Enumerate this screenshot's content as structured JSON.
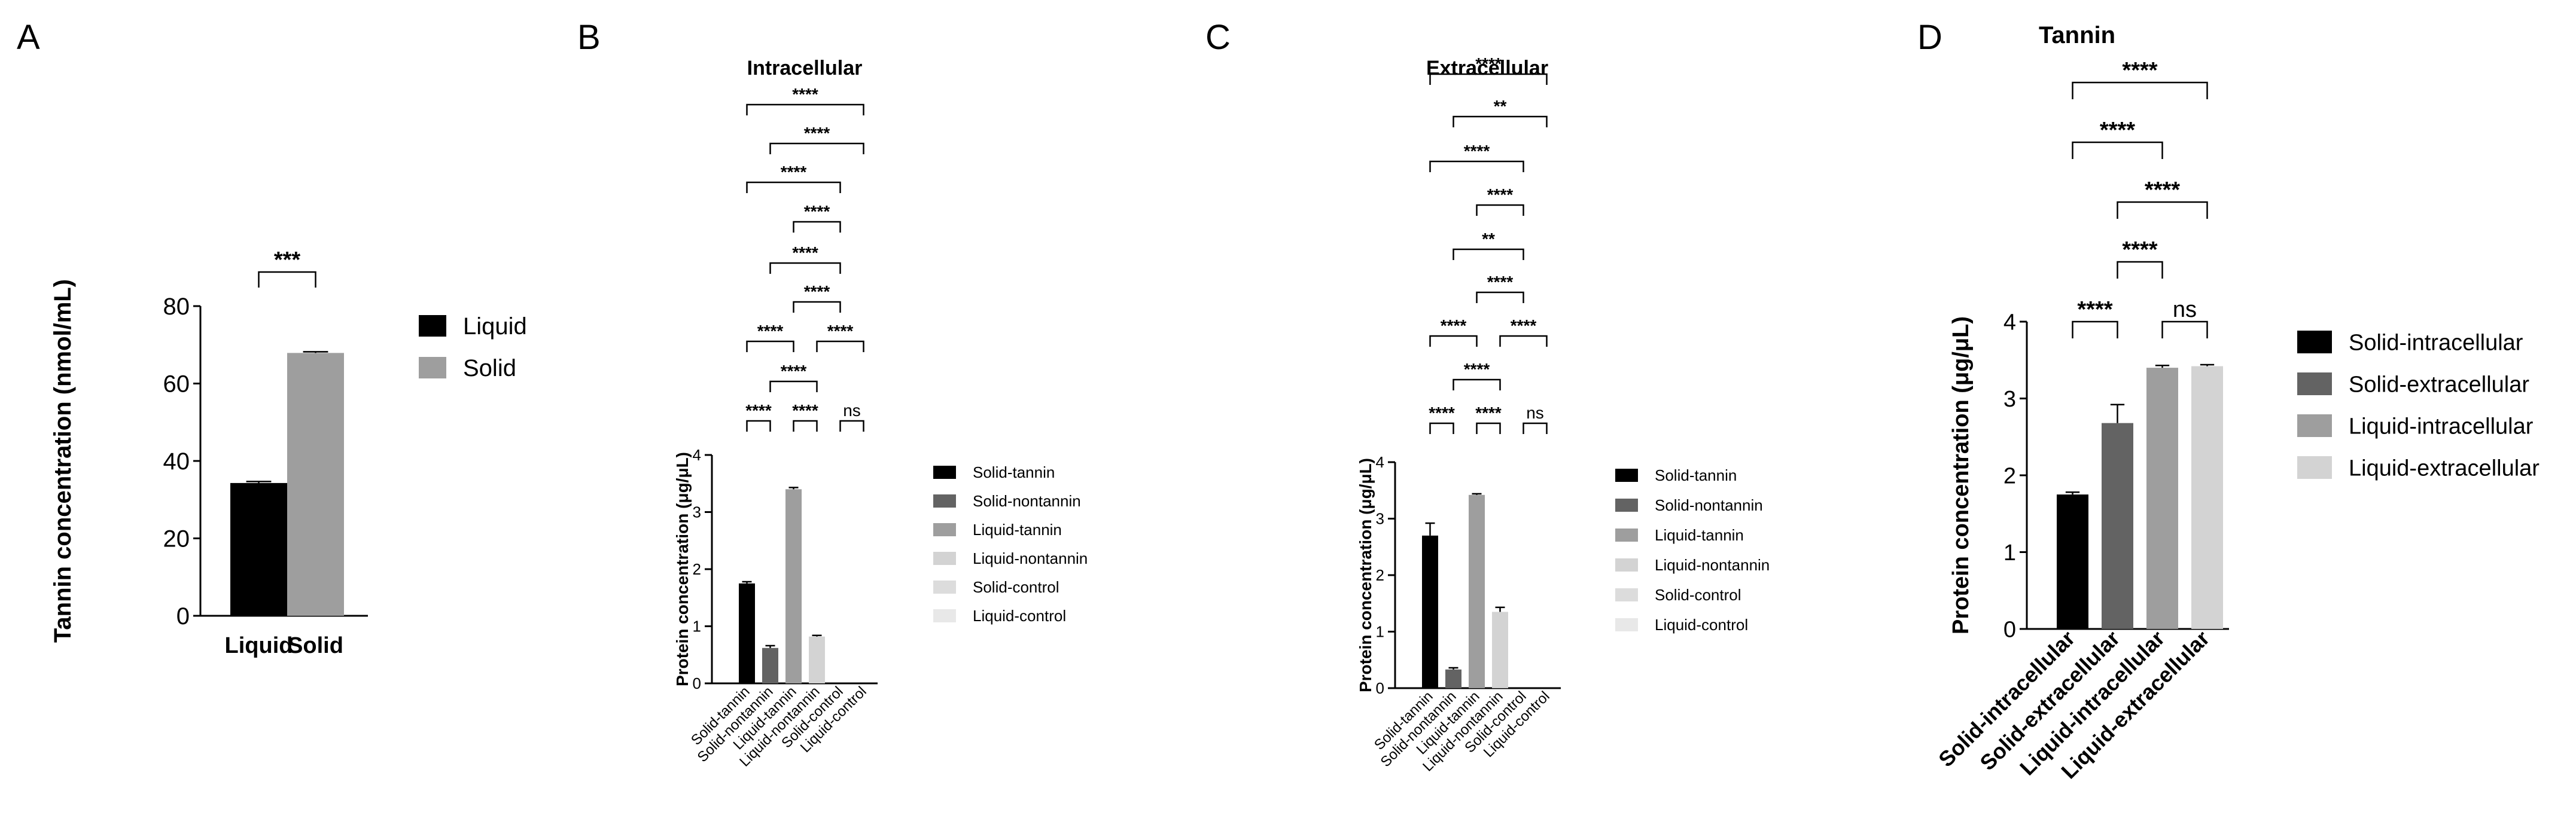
{
  "figure": {
    "panel_labels": [
      "A",
      "B",
      "C",
      "D"
    ]
  },
  "chart_data": [
    {
      "type": "bar",
      "panel": "A",
      "title": "",
      "xlabel": "",
      "ylabel": "Tannin concentration (nmol/mL)",
      "categories": [
        "Liquid",
        "Solid"
      ],
      "values": [
        34.3,
        67.9
      ],
      "errors": [
        0.4,
        0.3
      ],
      "colors": [
        "#000000",
        "#9e9e9e"
      ],
      "ylim": [
        0,
        80
      ],
      "yticks": [
        0,
        20,
        40,
        60,
        80
      ],
      "legend": [
        "Liquid",
        "Solid"
      ],
      "legend_position": "right",
      "significance": [
        {
          "from": 0,
          "to": 1,
          "label": "***"
        }
      ]
    },
    {
      "type": "bar",
      "panel": "B",
      "title": "Intracellular",
      "xlabel": "",
      "ylabel": "Protein concentration (μg/μL)",
      "categories": [
        "Solid-tannin",
        "Solid-nontannin",
        "Liquid-tannin",
        "Liquid-nontannin",
        "Solid-control",
        "Liquid-control"
      ],
      "values": [
        1.75,
        0.62,
        3.4,
        0.82,
        0,
        0
      ],
      "errors": [
        0.03,
        0.04,
        0.03,
        0.02,
        0,
        0
      ],
      "colors": [
        "#000000",
        "#636363",
        "#9e9e9e",
        "#d3d3d3",
        "#dcdcdc",
        "#e8e8e8"
      ],
      "ylim": [
        0,
        4
      ],
      "yticks": [
        0,
        1,
        2,
        3,
        4
      ],
      "legend": [
        "Solid-tannin",
        "Solid-nontannin",
        "Liquid-tannin",
        "Liquid-nontannin",
        "Solid-control",
        "Liquid-control"
      ],
      "legend_position": "right",
      "significance": [
        {
          "from": 0,
          "to": 1,
          "label": "****"
        },
        {
          "from": 2,
          "to": 3,
          "label": "****"
        },
        {
          "from": 4,
          "to": 5,
          "label": "ns"
        },
        {
          "from": 1,
          "to": 3,
          "label": "****"
        },
        {
          "from": 0,
          "to": 2,
          "label": "****"
        },
        {
          "from": 3,
          "to": 5,
          "label": "****"
        },
        {
          "from": 2,
          "to": 4,
          "label": "****"
        },
        {
          "from": 1,
          "to": 4,
          "label": "****"
        },
        {
          "from": 2,
          "to": 4,
          "label": "****"
        },
        {
          "from": 0,
          "to": 4,
          "label": "****"
        },
        {
          "from": 1,
          "to": 5,
          "label": "****"
        },
        {
          "from": 0,
          "to": 5,
          "label": "****"
        }
      ]
    },
    {
      "type": "bar",
      "panel": "C",
      "title": "Extracellular",
      "xlabel": "",
      "ylabel": "Protein concentration (μg/μL)",
      "categories": [
        "Solid-tannin",
        "Solid-nontannin",
        "Liquid-tannin",
        "Liquid-nontannin",
        "Solid-control",
        "Liquid-control"
      ],
      "values": [
        2.7,
        0.33,
        3.42,
        1.35,
        0,
        0
      ],
      "errors": [
        0.22,
        0.03,
        0.02,
        0.08,
        0,
        0
      ],
      "colors": [
        "#000000",
        "#636363",
        "#9e9e9e",
        "#d3d3d3",
        "#dcdcdc",
        "#e8e8e8"
      ],
      "ylim": [
        0,
        4
      ],
      "yticks": [
        0,
        1,
        2,
        3,
        4
      ],
      "legend": [
        "Solid-tannin",
        "Solid-nontannin",
        "Liquid-tannin",
        "Liquid-nontannin",
        "Solid-control",
        "Liquid-control"
      ],
      "legend_position": "right",
      "significance": [
        {
          "from": 0,
          "to": 1,
          "label": "****"
        },
        {
          "from": 2,
          "to": 3,
          "label": "****"
        },
        {
          "from": 4,
          "to": 5,
          "label": "ns"
        },
        {
          "from": 1,
          "to": 3,
          "label": "****"
        },
        {
          "from": 0,
          "to": 2,
          "label": "****"
        },
        {
          "from": 3,
          "to": 5,
          "label": "****"
        },
        {
          "from": 2,
          "to": 4,
          "label": "****"
        },
        {
          "from": 1,
          "to": 4,
          "label": "**"
        },
        {
          "from": 2,
          "to": 4,
          "label": "****"
        },
        {
          "from": 0,
          "to": 4,
          "label": "****"
        },
        {
          "from": 1,
          "to": 5,
          "label": "**"
        },
        {
          "from": 0,
          "to": 5,
          "label": "****"
        }
      ]
    },
    {
      "type": "bar",
      "panel": "D",
      "title": "Tannin",
      "xlabel": "",
      "ylabel": "Protein concentration (μg/μL)",
      "categories": [
        "Solid-intracellular",
        "Solid-extracellular",
        "Liquid-intracellular",
        "Liquid-extracellular"
      ],
      "values": [
        1.75,
        2.68,
        3.4,
        3.42
      ],
      "errors": [
        0.03,
        0.24,
        0.03,
        0.02
      ],
      "colors": [
        "#000000",
        "#636363",
        "#9e9e9e",
        "#d3d3d3"
      ],
      "ylim": [
        0,
        4
      ],
      "yticks": [
        0,
        1,
        2,
        3,
        4
      ],
      "legend": [
        "Solid-intracellular",
        "Solid-extracellular",
        "Liquid-intracellular",
        "Liquid-extracellular"
      ],
      "legend_position": "right",
      "significance": [
        {
          "from": 0,
          "to": 1,
          "label": "****"
        },
        {
          "from": 2,
          "to": 3,
          "label": "ns"
        },
        {
          "from": 1,
          "to": 2,
          "label": "****"
        },
        {
          "from": 1,
          "to": 3,
          "label": "****"
        },
        {
          "from": 0,
          "to": 2,
          "label": "****"
        },
        {
          "from": 0,
          "to": 3,
          "label": "****"
        }
      ]
    }
  ]
}
